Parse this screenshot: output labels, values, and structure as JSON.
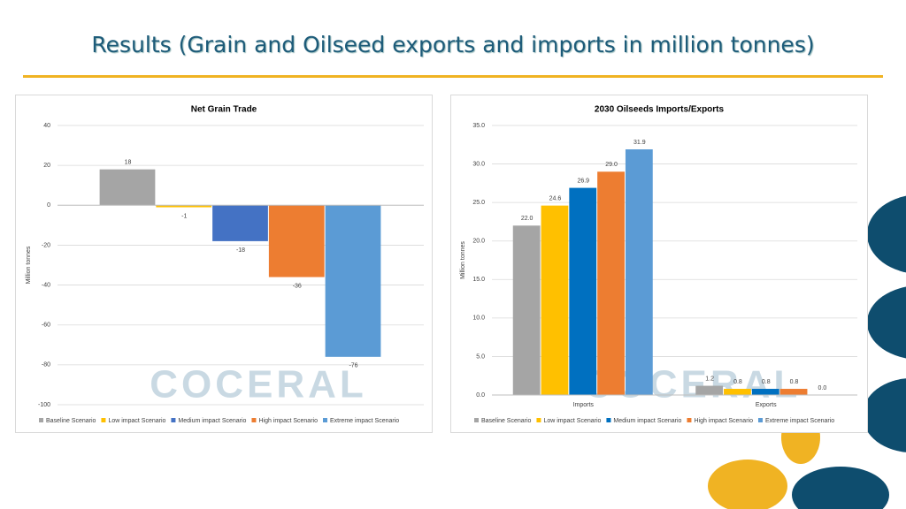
{
  "title": "Results (Grain and Oilseed exports and imports in million tonnes)",
  "watermark": "COCERAL",
  "chart_data": [
    {
      "type": "bar",
      "title": "Net Grain Trade",
      "y_label": "Million tonnes",
      "categories": [
        null
      ],
      "series": [
        {
          "name": "Baseline Scenario",
          "color": "#a5a5a5",
          "values": [
            18
          ]
        },
        {
          "name": "Low impact Scenario",
          "color": "#ffc000",
          "values": [
            -1
          ]
        },
        {
          "name": "Medium impact Scenario",
          "color": "#4472c4",
          "values": [
            -18
          ]
        },
        {
          "name": "High impact Scenario",
          "color": "#ed7d31",
          "values": [
            -36
          ]
        },
        {
          "name": "Extreme impact Scenario",
          "color": "#5b9bd5",
          "values": [
            -76
          ]
        }
      ],
      "ylim": [
        -100,
        40
      ],
      "yticks": [
        -100,
        -80,
        -60,
        -40,
        -20,
        0,
        20,
        40
      ],
      "grid": true
    },
    {
      "type": "bar",
      "title": "2030 Oilseeds Imports/Exports",
      "y_label": "Million tonnes",
      "categories": [
        "Imports",
        "Exports"
      ],
      "series": [
        {
          "name": "Baseline Scenario",
          "color": "#a5a5a5",
          "values": [
            22.0,
            1.2
          ],
          "value_labels": [
            "22.0",
            "1.2"
          ]
        },
        {
          "name": "Low impact Scenario",
          "color": "#ffc000",
          "values": [
            24.6,
            0.8
          ],
          "value_labels": [
            "24.6",
            "0.8"
          ]
        },
        {
          "name": "Medium impact Scenario",
          "color": "#0070c0",
          "values": [
            26.9,
            0.8
          ],
          "value_labels": [
            "26.9",
            "0.8"
          ]
        },
        {
          "name": "High impact Scenario",
          "color": "#ed7d31",
          "values": [
            29.0,
            0.8
          ],
          "value_labels": [
            "29.0",
            "0.8"
          ]
        },
        {
          "name": "Extreme impact Scenario",
          "color": "#5b9bd5",
          "values": [
            31.9,
            0.0
          ],
          "value_labels": [
            "31.9",
            "0.0"
          ]
        }
      ],
      "ylim": [
        0,
        35
      ],
      "yticks": [
        {
          "value": 0,
          "label": "0.0"
        },
        {
          "value": 5,
          "label": "5.0"
        },
        {
          "value": 10,
          "label": "10.0"
        },
        {
          "value": 15,
          "label": "15.0"
        },
        {
          "value": 20,
          "label": "20.0"
        },
        {
          "value": 25,
          "label": "25.0"
        },
        {
          "value": 30,
          "label": "30.0"
        },
        {
          "value": 35,
          "label": "35.0"
        }
      ],
      "grid": true
    }
  ]
}
